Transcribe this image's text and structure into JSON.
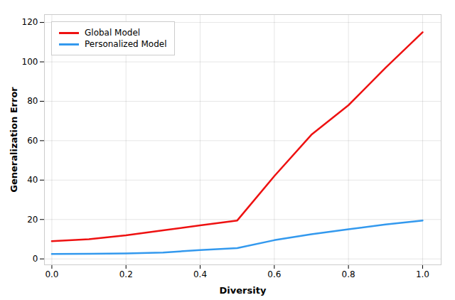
{
  "chart_data": {
    "type": "line",
    "xlabel": "Diversity",
    "ylabel": "Generalization Error",
    "x": [
      0.0,
      0.1,
      0.2,
      0.3,
      0.4,
      0.5,
      0.6,
      0.7,
      0.8,
      0.9,
      1.0
    ],
    "series": [
      {
        "name": "Global Model",
        "color": "#ee1111",
        "values": [
          9.0,
          10.0,
          12.0,
          14.5,
          17.0,
          19.5,
          42.0,
          63.0,
          78.0,
          97.0,
          115.0
        ]
      },
      {
        "name": "Personalized Model",
        "color": "#3399ee",
        "values": [
          2.5,
          2.6,
          2.8,
          3.2,
          4.5,
          5.5,
          9.5,
          12.5,
          15.0,
          17.5,
          19.5
        ]
      }
    ],
    "xlim": [
      -0.02,
      1.05
    ],
    "ylim": [
      -3,
      124
    ],
    "xticks": [
      {
        "value": 0.0,
        "label": "0.0"
      },
      0.2,
      0.4,
      0.6,
      0.8,
      {
        "value": 1.0,
        "label": "1.0"
      }
    ],
    "yticks": [
      0,
      20,
      40,
      60,
      80,
      100,
      120
    ],
    "grid": true,
    "legend": "upper left"
  }
}
